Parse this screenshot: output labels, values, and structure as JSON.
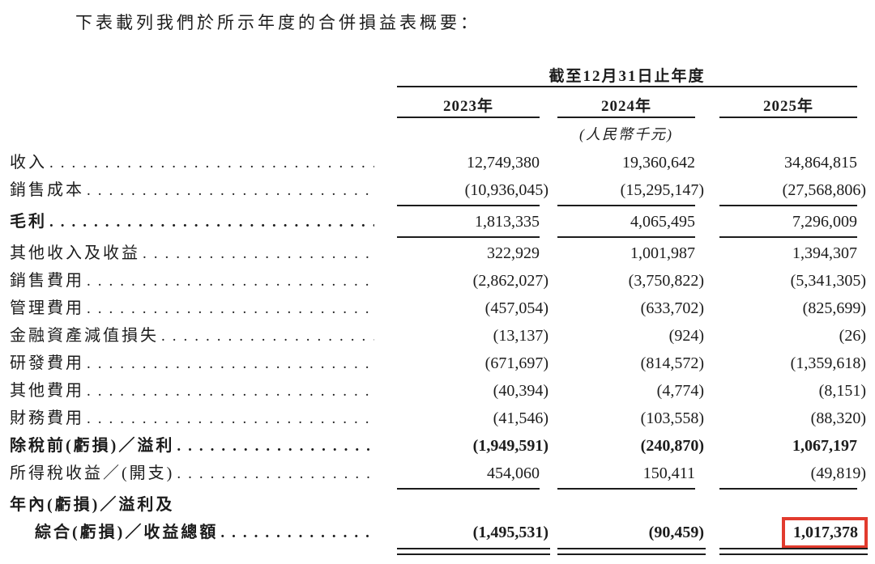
{
  "page": {
    "intro_text": "下表載列我們於所示年度的合併損益表概要："
  },
  "table": {
    "period_header": "截至12月31日止年度",
    "columns": [
      "2023年",
      "2024年",
      "2025年"
    ],
    "unit_note": "(人民幣千元)",
    "highlight_color": "#e23b2e",
    "rows": [
      {
        "label": "收入",
        "values": [
          "12,749,380",
          "19,360,642",
          "34,864,815"
        ]
      },
      {
        "label": "銷售成本",
        "values": [
          "(10,936,045)",
          "(15,295,147)",
          "(27,568,806)"
        ],
        "rule": "single"
      },
      {
        "label": "毛利",
        "bold_label": true,
        "values": [
          "1,813,335",
          "4,065,495",
          "7,296,009"
        ],
        "rule": "single"
      },
      {
        "label": "其他收入及收益",
        "values": [
          "322,929",
          "1,001,987",
          "1,394,307"
        ]
      },
      {
        "label": "銷售費用",
        "values": [
          "(2,862,027)",
          "(3,750,822)",
          "(5,341,305)"
        ]
      },
      {
        "label": "管理費用",
        "values": [
          "(457,054)",
          "(633,702)",
          "(825,699)"
        ]
      },
      {
        "label": "金融資產減值損失",
        "values": [
          "(13,137)",
          "(924)",
          "(26)"
        ]
      },
      {
        "label": "研發費用",
        "values": [
          "(671,697)",
          "(814,572)",
          "(1,359,618)"
        ]
      },
      {
        "label": "其他費用",
        "values": [
          "(40,394)",
          "(4,774)",
          "(8,151)"
        ]
      },
      {
        "label": "財務費用",
        "values": [
          "(41,546)",
          "(103,558)",
          "(88,320)"
        ]
      },
      {
        "label": "除稅前(虧損)／溢利",
        "bold_label": true,
        "bold_values": true,
        "values": [
          "(1,949,591)",
          "(240,870)",
          "1,067,197"
        ]
      },
      {
        "label": "所得稅收益／(開支)",
        "values": [
          "454,060",
          "150,411",
          "(49,819)"
        ],
        "rule": "single"
      },
      {
        "pre_label": "年內(虧損)／溢利及",
        "label": "綜合(虧損)／收益總額",
        "label_indent": true,
        "bold_label": true,
        "bold_values": true,
        "values": [
          "(1,495,531)",
          "(90,459)",
          "1,017,378"
        ],
        "rule": "double",
        "highlight_col": 2
      }
    ]
  }
}
